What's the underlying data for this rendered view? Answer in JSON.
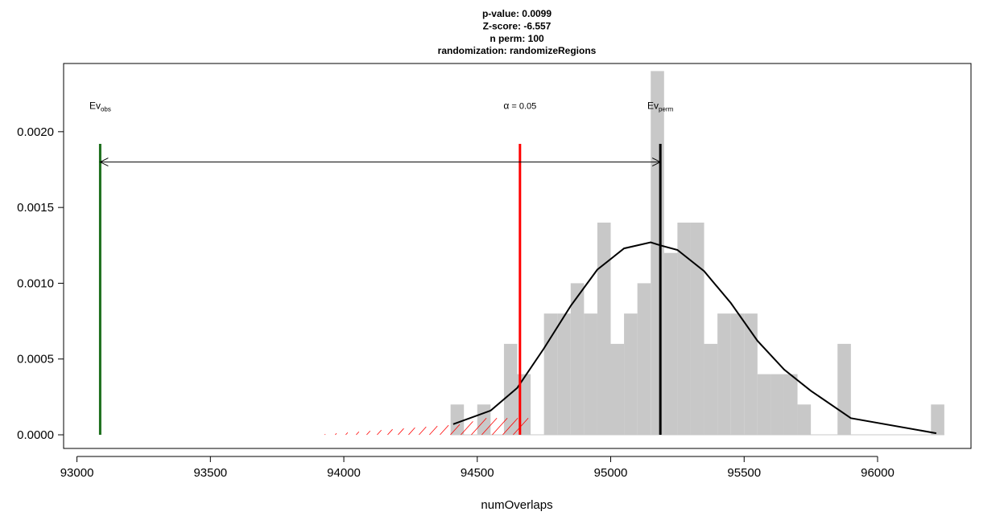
{
  "chart_data": {
    "type": "bar",
    "title_lines": [
      "p-value:  0.0099",
      "Z-score:  -6.557",
      "n perm:  100",
      "randomization:  randomizeRegions"
    ],
    "xlabel": "numOverlaps",
    "ylabel": "",
    "xlim": [
      92950,
      96350
    ],
    "ylim": [
      -9e-05,
      0.00245
    ],
    "x_ticks": [
      93000,
      93500,
      94000,
      94500,
      95000,
      95500,
      96000
    ],
    "x_tick_labels": [
      "93000",
      "93500",
      "94000",
      "94500",
      "95000",
      "95500",
      "96000"
    ],
    "y_ticks": [
      0,
      0.0005,
      0.001,
      0.0015,
      0.002
    ],
    "y_tick_labels": [
      "0.0000",
      "0.0005",
      "0.0010",
      "0.0015",
      "0.0020"
    ],
    "histogram": {
      "bin_width": 50,
      "bins": [
        {
          "start": 94400,
          "density": 0.0002
        },
        {
          "start": 94450,
          "density": 0.0
        },
        {
          "start": 94500,
          "density": 0.0002
        },
        {
          "start": 94550,
          "density": 0.0
        },
        {
          "start": 94600,
          "density": 0.0006
        },
        {
          "start": 94650,
          "density": 0.0004
        },
        {
          "start": 94700,
          "density": 0.0
        },
        {
          "start": 94750,
          "density": 0.0008
        },
        {
          "start": 94800,
          "density": 0.0008
        },
        {
          "start": 94850,
          "density": 0.001
        },
        {
          "start": 94900,
          "density": 0.0008
        },
        {
          "start": 94950,
          "density": 0.0014
        },
        {
          "start": 95000,
          "density": 0.0006
        },
        {
          "start": 95050,
          "density": 0.0008
        },
        {
          "start": 95100,
          "density": 0.001
        },
        {
          "start": 95150,
          "density": 0.0024
        },
        {
          "start": 95200,
          "density": 0.0012
        },
        {
          "start": 95250,
          "density": 0.0014
        },
        {
          "start": 95300,
          "density": 0.0014
        },
        {
          "start": 95350,
          "density": 0.0006
        },
        {
          "start": 95400,
          "density": 0.0008
        },
        {
          "start": 95450,
          "density": 0.0008
        },
        {
          "start": 95500,
          "density": 0.0008
        },
        {
          "start": 95550,
          "density": 0.0004
        },
        {
          "start": 95600,
          "density": 0.0004
        },
        {
          "start": 95650,
          "density": 0.0004
        },
        {
          "start": 95700,
          "density": 0.0002
        },
        {
          "start": 95750,
          "density": 0.0
        },
        {
          "start": 95800,
          "density": 0.0
        },
        {
          "start": 95850,
          "density": 0.0006
        },
        {
          "start": 95900,
          "density": 0.0
        },
        {
          "start": 95950,
          "density": 0.0
        },
        {
          "start": 96000,
          "density": 0.0
        },
        {
          "start": 96050,
          "density": 0.0
        },
        {
          "start": 96100,
          "density": 0.0
        },
        {
          "start": 96150,
          "density": 0.0
        },
        {
          "start": 96200,
          "density": 0.0002
        }
      ]
    },
    "density_curve": {
      "x": [
        94410,
        94550,
        94650,
        94750,
        94850,
        94950,
        95050,
        95150,
        95186,
        95250,
        95350,
        95450,
        95550,
        95650,
        95750,
        95900,
        96220
      ],
      "y": [
        7e-05,
        0.00016,
        0.00031,
        0.00057,
        0.00085,
        0.00109,
        0.00123,
        0.00127,
        0.00125,
        0.00122,
        0.00108,
        0.00087,
        0.00062,
        0.00043,
        0.00029,
        0.00011,
        1e-05
      ]
    },
    "observed": {
      "x": 93087,
      "label_main": "Ev",
      "label_sub": "obs",
      "color": "#1b6e1b"
    },
    "permuted_mean": {
      "x": 95186,
      "label_main": "Ev",
      "label_sub": "perm",
      "color": "#000000"
    },
    "alpha": {
      "x": 94660,
      "label_symbol": "α",
      "label_rest": " = 0.05",
      "color": "#ff0000"
    },
    "line_top_y": 0.00192,
    "arrow_y": 0.0018,
    "label_y": 0.00215,
    "hatch_region": {
      "from": 93087,
      "to": 94660
    },
    "colors": {
      "bars": "#c8c8c8",
      "curve": "#000000",
      "hatch": "#ff0000"
    }
  }
}
